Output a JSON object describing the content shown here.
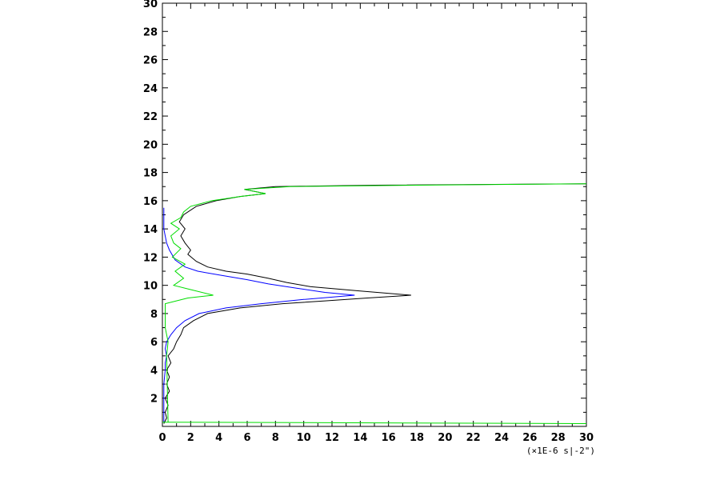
{
  "chart_data": {
    "type": "line",
    "title": "",
    "xlabel": "",
    "ylabel": "",
    "x_unit_label": "(×1E-6 s|-2\")",
    "xlim": [
      0,
      30
    ],
    "ylim": [
      0,
      30
    ],
    "xticks": [
      "0",
      "2",
      "4",
      "6",
      "8",
      "10",
      "12",
      "14",
      "16",
      "18",
      "20",
      "22",
      "24",
      "26",
      "28",
      "30"
    ],
    "yticks": [
      "2",
      "4",
      "6",
      "8",
      "10",
      "12",
      "14",
      "16",
      "18",
      "20",
      "22",
      "24",
      "26",
      "28",
      "30"
    ],
    "grid": false,
    "legend": "none",
    "series": [
      {
        "color": "#000000",
        "points": [
          [
            0.1,
            0.2
          ],
          [
            0.3,
            0.6
          ],
          [
            0.2,
            1.0
          ],
          [
            0.4,
            1.5
          ],
          [
            0.2,
            2.0
          ],
          [
            0.5,
            2.5
          ],
          [
            0.3,
            3.0
          ],
          [
            0.5,
            3.5
          ],
          [
            0.3,
            4.0
          ],
          [
            0.6,
            4.5
          ],
          [
            0.4,
            5.0
          ],
          [
            0.8,
            5.5
          ],
          [
            1.0,
            6.0
          ],
          [
            1.3,
            6.5
          ],
          [
            1.5,
            7.0
          ],
          [
            2.2,
            7.5
          ],
          [
            3.2,
            8.0
          ],
          [
            5.5,
            8.4
          ],
          [
            8.5,
            8.7
          ],
          [
            11.5,
            8.9
          ],
          [
            14.5,
            9.1
          ],
          [
            17.6,
            9.3
          ],
          [
            14.0,
            9.6
          ],
          [
            10.5,
            9.9
          ],
          [
            8.8,
            10.2
          ],
          [
            7.5,
            10.5
          ],
          [
            6.0,
            10.8
          ],
          [
            4.5,
            11.0
          ],
          [
            3.2,
            11.3
          ],
          [
            2.4,
            11.7
          ],
          [
            1.8,
            12.2
          ],
          [
            2.0,
            12.5
          ],
          [
            1.6,
            13.0
          ],
          [
            1.3,
            13.5
          ],
          [
            1.6,
            14.0
          ],
          [
            1.2,
            14.5
          ],
          [
            1.5,
            15.0
          ],
          [
            2.4,
            15.6
          ],
          [
            3.8,
            16.0
          ],
          [
            5.5,
            16.3
          ],
          [
            7.3,
            16.5
          ],
          [
            5.8,
            16.8
          ],
          [
            8.0,
            17.0
          ],
          [
            15.0,
            17.1
          ],
          [
            30.0,
            17.2
          ]
        ]
      },
      {
        "color": "#0000ff",
        "points": [
          [
            0.1,
            0.3
          ],
          [
            0.1,
            1.0
          ],
          [
            0.1,
            2.0
          ],
          [
            0.1,
            3.0
          ],
          [
            0.2,
            4.0
          ],
          [
            0.2,
            4.5
          ],
          [
            0.3,
            5.0
          ],
          [
            0.2,
            5.5
          ],
          [
            0.3,
            6.0
          ],
          [
            0.6,
            6.5
          ],
          [
            1.0,
            7.0
          ],
          [
            1.6,
            7.5
          ],
          [
            2.6,
            8.0
          ],
          [
            4.5,
            8.4
          ],
          [
            7.0,
            8.7
          ],
          [
            10.0,
            9.0
          ],
          [
            13.6,
            9.3
          ],
          [
            11.5,
            9.5
          ],
          [
            9.5,
            9.8
          ],
          [
            7.5,
            10.1
          ],
          [
            6.0,
            10.4
          ],
          [
            4.2,
            10.7
          ],
          [
            2.5,
            11.0
          ],
          [
            1.6,
            11.3
          ],
          [
            0.9,
            11.8
          ],
          [
            0.5,
            12.5
          ],
          [
            0.3,
            13.0
          ],
          [
            0.2,
            13.5
          ],
          [
            0.1,
            14.0
          ],
          [
            0.1,
            15.0
          ],
          [
            0.1,
            15.5
          ]
        ]
      },
      {
        "color": "#00dd00",
        "points": [
          [
            0.0,
            0.3
          ],
          [
            30.0,
            0.2
          ],
          [
            0.4,
            0.3
          ],
          [
            0.3,
            5.0
          ],
          [
            0.4,
            6.0
          ],
          [
            0.2,
            7.0
          ],
          [
            0.2,
            8.7
          ],
          [
            1.8,
            9.1
          ],
          [
            3.6,
            9.3
          ],
          [
            2.0,
            9.7
          ],
          [
            0.8,
            10.0
          ],
          [
            1.5,
            10.5
          ],
          [
            0.9,
            11.0
          ],
          [
            1.6,
            11.5
          ],
          [
            0.7,
            12.0
          ],
          [
            1.3,
            12.6
          ],
          [
            0.8,
            13.0
          ],
          [
            0.6,
            13.5
          ],
          [
            1.2,
            14.0
          ],
          [
            0.6,
            14.4
          ],
          [
            1.3,
            14.8
          ],
          [
            1.5,
            15.2
          ],
          [
            2.0,
            15.6
          ],
          [
            3.5,
            16.0
          ],
          [
            5.5,
            16.3
          ],
          [
            7.3,
            16.5
          ],
          [
            5.8,
            16.8
          ],
          [
            9.0,
            17.0
          ],
          [
            18.0,
            17.1
          ],
          [
            30.0,
            17.2
          ]
        ]
      }
    ]
  }
}
